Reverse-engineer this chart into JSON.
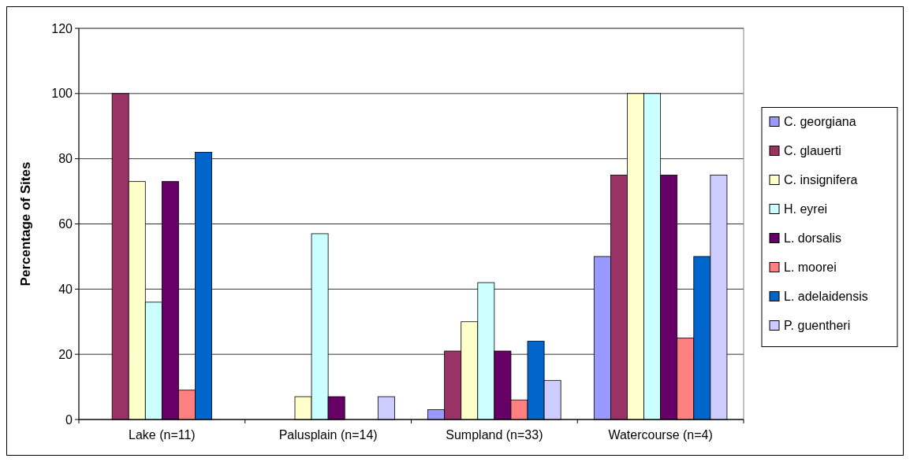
{
  "chart_data": {
    "type": "bar",
    "ylabel": "Percentage of Sites",
    "categories": [
      "Lake (n=11)",
      "Palusplain (n=14)",
      "Sumpland (n=33)",
      "Watercourse (n=4)"
    ],
    "ylim": [
      0,
      120
    ],
    "yticks": [
      0,
      20,
      40,
      60,
      80,
      100,
      120
    ],
    "grid": "y",
    "legend": "right",
    "series": [
      {
        "name": "C. georgiana",
        "color": "#9999ff",
        "values": [
          0,
          0,
          3,
          50
        ]
      },
      {
        "name": "C. glauerti",
        "color": "#993366",
        "values": [
          100,
          0,
          21,
          75
        ]
      },
      {
        "name": "C. insignifera",
        "color": "#ffffcc",
        "values": [
          73,
          7,
          30,
          100
        ]
      },
      {
        "name": "H. eyrei",
        "color": "#ccffff",
        "values": [
          36,
          57,
          42,
          100
        ]
      },
      {
        "name": "L. dorsalis",
        "color": "#660066",
        "values": [
          73,
          7,
          21,
          75
        ]
      },
      {
        "name": "L. moorei",
        "color": "#ff8080",
        "values": [
          9,
          0,
          6,
          25
        ]
      },
      {
        "name": "L. adelaidensis",
        "color": "#0066cc",
        "values": [
          82,
          0,
          24,
          50
        ]
      },
      {
        "name": "P. guentheri",
        "color": "#ccccff",
        "values": [
          0,
          7,
          12,
          75
        ]
      }
    ]
  }
}
